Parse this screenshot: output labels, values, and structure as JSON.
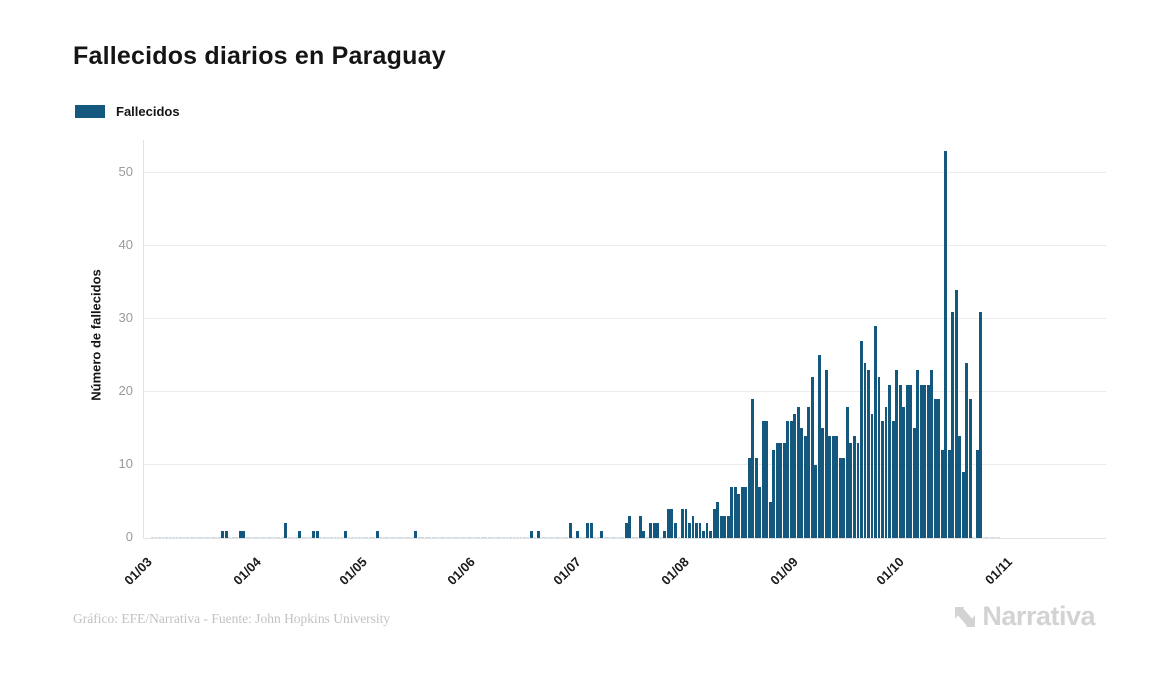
{
  "page": {
    "title": "Fallecidos diarios en Paraguay"
  },
  "legend": {
    "items": [
      {
        "label": "Fallecidos",
        "color": "#14597d"
      }
    ]
  },
  "footer": {
    "attribution": "Gráfico: EFE/Narrativa - Fuente: John Hopkins University",
    "logo_text": "Narrativa"
  },
  "colors": {
    "accent": "#14597d",
    "zero_bar": "#ccd9e3",
    "grid": "#ebebeb",
    "axis": "#e2e2e2",
    "y_tick_label": "#9a9a9a",
    "x_tick_label": "#1a1a1a",
    "title": "#151515",
    "footer_text": "#c2c2c2",
    "logo": "#d3d3d3"
  },
  "chart_data": {
    "type": "bar",
    "title": "Fallecidos diarios en Paraguay",
    "series_name": "Fallecidos",
    "xlabel": "",
    "ylabel": "Número de fallecidos",
    "ylim": [
      0,
      54.5
    ],
    "y_ticks": [
      0,
      10,
      20,
      30,
      40,
      50
    ],
    "x_tick_labels": [
      "01/03",
      "01/04",
      "01/05",
      "01/06",
      "01/07",
      "01/08",
      "01/09",
      "01/10",
      "01/11"
    ],
    "x_tick_day_offsets": [
      0,
      31,
      61,
      92,
      122,
      153,
      184,
      214,
      245
    ],
    "start_label": "01/03",
    "grid": true,
    "legend_position": "top-left",
    "values": [
      0,
      0,
      0,
      0,
      0,
      0,
      0,
      0,
      0,
      0,
      0,
      0,
      0,
      0,
      0,
      0,
      0,
      0,
      0,
      0,
      1,
      1,
      0,
      0,
      0,
      1,
      1,
      0,
      0,
      0,
      0,
      0,
      0,
      0,
      0,
      0,
      0,
      0,
      2,
      0,
      0,
      0,
      1,
      0,
      0,
      0,
      1,
      1,
      0,
      0,
      0,
      0,
      0,
      0,
      0,
      1,
      0,
      0,
      0,
      0,
      0,
      0,
      0,
      0,
      1,
      0,
      0,
      0,
      0,
      0,
      0,
      0,
      0,
      0,
      0,
      1,
      0,
      0,
      0,
      0,
      0,
      0,
      0,
      0,
      0,
      0,
      0,
      0,
      0,
      0,
      0,
      0,
      0,
      0,
      0,
      0,
      0,
      0,
      0,
      0,
      0,
      0,
      0,
      0,
      0,
      0,
      0,
      0,
      1,
      0,
      1,
      0,
      0,
      0,
      0,
      0,
      0,
      0,
      0,
      2,
      0,
      1,
      0,
      0,
      2,
      2,
      0,
      0,
      1,
      0,
      0,
      0,
      0,
      0,
      0,
      2,
      3,
      0,
      0,
      3,
      1,
      0,
      2,
      2,
      2,
      0,
      1,
      4,
      4,
      2,
      0,
      4,
      4,
      2,
      3,
      2,
      2,
      1,
      2,
      1,
      4,
      5,
      3,
      3,
      3,
      7,
      7,
      6,
      7,
      7,
      11,
      19,
      11,
      7,
      16,
      16,
      5,
      12,
      13,
      13,
      13,
      16,
      16,
      17,
      18,
      15,
      14,
      18,
      22,
      10,
      25,
      15,
      23,
      14,
      14,
      14,
      11,
      11,
      18,
      13,
      14,
      13,
      27,
      24,
      23,
      17,
      29,
      22,
      16,
      18,
      21,
      16,
      23,
      21,
      18,
      21,
      21,
      15,
      23,
      21,
      21,
      21,
      23,
      19,
      19,
      12,
      53,
      12,
      31,
      34,
      14,
      9,
      24,
      19,
      0,
      12,
      31,
      0,
      0,
      0,
      0,
      0
    ]
  }
}
